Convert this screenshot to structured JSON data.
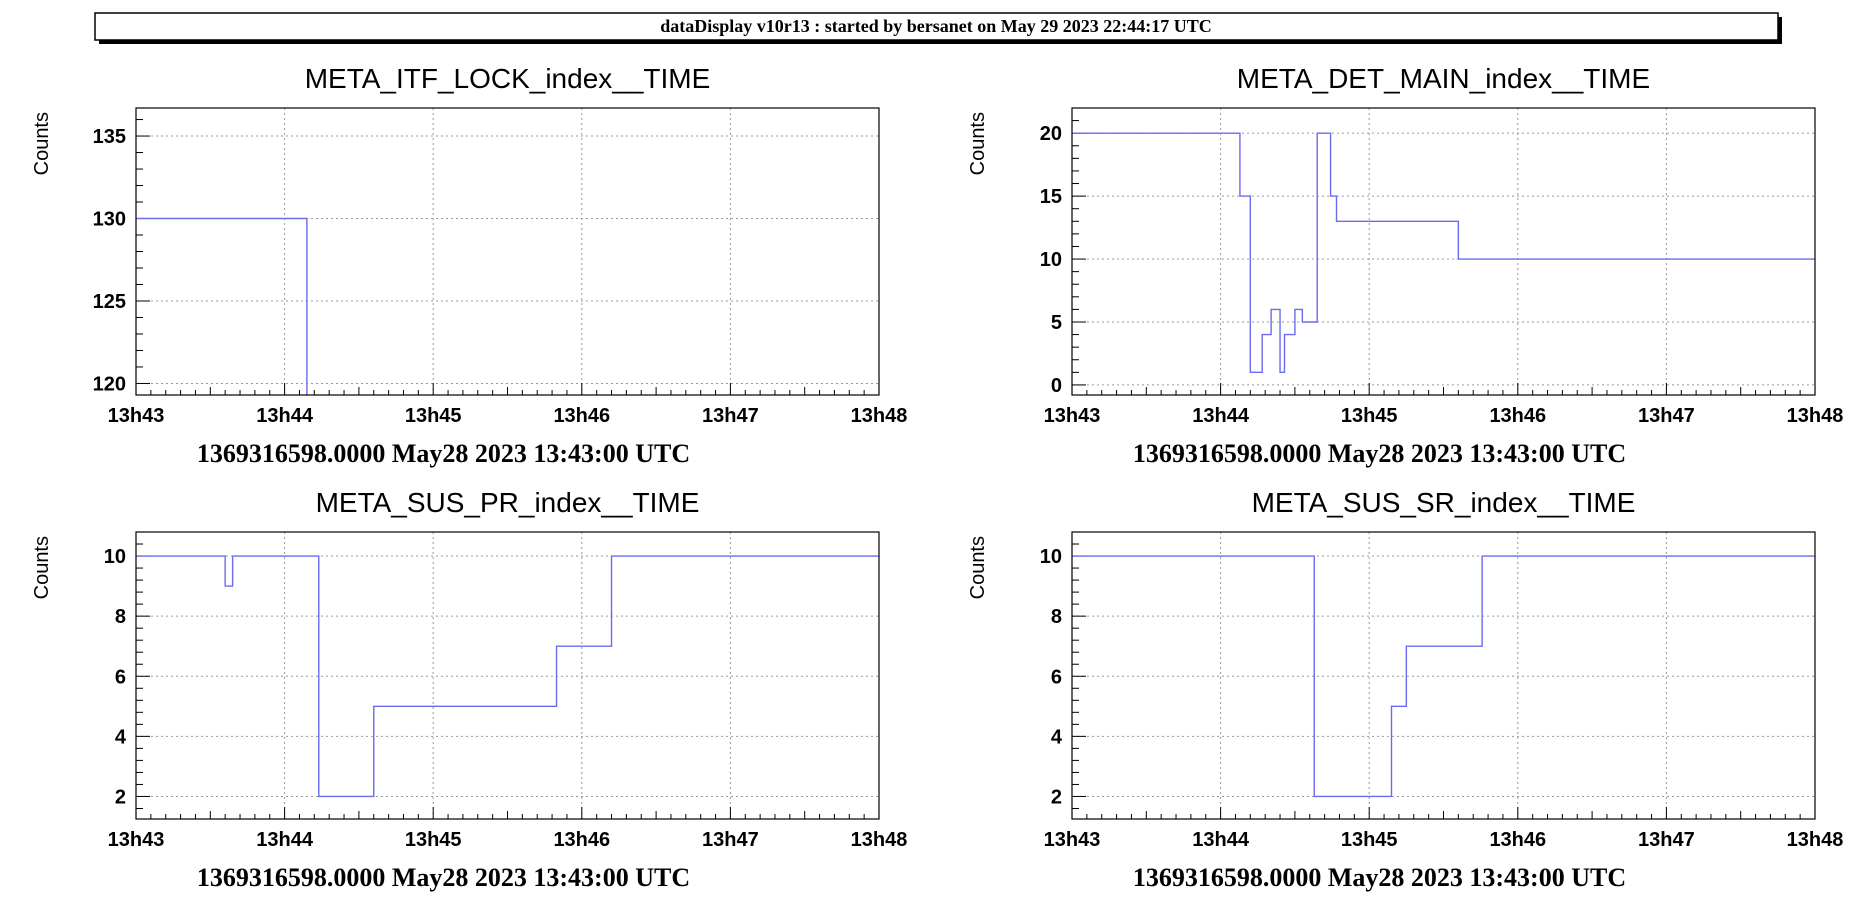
{
  "banner": {
    "text": "dataDisplay v10r13 : started by bersanet on May 29 2023 22:44:17 UTC"
  },
  "colors": {
    "line": "#6b6bf0",
    "grid": "#9a9a9a",
    "frame": "#000000"
  },
  "chart_data": [
    {
      "type": "line",
      "step": true,
      "title": "META_ITF_LOCK_index__TIME",
      "ylabel": "Counts",
      "xlabel": "1369316598.0000 May28 2023 13:43:00 UTC",
      "grid": true,
      "xlim": [
        0,
        5
      ],
      "ylim": [
        119.3,
        136.7
      ],
      "x_ticks": [
        "13h43",
        "13h44",
        "13h45",
        "13h46",
        "13h47",
        "13h48"
      ],
      "y_ticks": [
        "120",
        "125",
        "130",
        "135"
      ],
      "y_tick_values": [
        120,
        125,
        130,
        135
      ],
      "x_unit": "minutes after 13h43",
      "series": [
        {
          "x": [
            0,
            1.15,
            1.15
          ],
          "y": [
            130,
            130,
            119.3
          ]
        }
      ]
    },
    {
      "type": "line",
      "step": true,
      "title": "META_DET_MAIN_index__TIME",
      "ylabel": "Counts",
      "xlabel": "1369316598.0000 May28 2023 13:43:00 UTC",
      "grid": true,
      "xlim": [
        0,
        5
      ],
      "ylim": [
        -0.8,
        22
      ],
      "x_ticks": [
        "13h43",
        "13h44",
        "13h45",
        "13h46",
        "13h47",
        "13h48"
      ],
      "y_ticks": [
        "0",
        "5",
        "10",
        "15",
        "20"
      ],
      "y_tick_values": [
        0,
        5,
        10,
        15,
        20
      ],
      "x_unit": "minutes after 13h43",
      "series": [
        {
          "x": [
            0,
            1.13,
            1.13,
            1.2,
            1.2,
            1.28,
            1.28,
            1.34,
            1.34,
            1.4,
            1.4,
            1.43,
            1.43,
            1.5,
            1.5,
            1.55,
            1.55,
            1.65,
            1.65,
            1.74,
            1.74,
            1.78,
            1.78,
            1.87,
            1.87,
            2.6,
            2.6,
            5
          ],
          "y": [
            20,
            20,
            15,
            15,
            1,
            1,
            4,
            4,
            6,
            6,
            1,
            1,
            4,
            4,
            6,
            6,
            5,
            5,
            20,
            20,
            15,
            15,
            13,
            13,
            13,
            13,
            10,
            10
          ]
        }
      ]
    },
    {
      "type": "line",
      "step": true,
      "title": "META_SUS_PR_index__TIME",
      "ylabel": "Counts",
      "xlabel": "1369316598.0000 May28 2023 13:43:00 UTC",
      "grid": true,
      "xlim": [
        0,
        5
      ],
      "ylim": [
        1.25,
        10.8
      ],
      "x_ticks": [
        "13h43",
        "13h44",
        "13h45",
        "13h46",
        "13h47",
        "13h48"
      ],
      "y_ticks": [
        "2",
        "4",
        "6",
        "8",
        "10"
      ],
      "y_tick_values": [
        2,
        4,
        6,
        8,
        10
      ],
      "x_unit": "minutes after 13h43",
      "series": [
        {
          "x": [
            0,
            0.6,
            0.6,
            0.65,
            0.65,
            1.23,
            1.23,
            1.6,
            1.6,
            2.83,
            2.83,
            3.2,
            3.2,
            5
          ],
          "y": [
            10,
            10,
            9,
            9,
            10,
            10,
            2,
            2,
            5,
            5,
            7,
            7,
            10,
            10
          ]
        }
      ]
    },
    {
      "type": "line",
      "step": true,
      "title": "META_SUS_SR_index__TIME",
      "ylabel": "Counts",
      "xlabel": "1369316598.0000 May28 2023 13:43:00 UTC",
      "grid": true,
      "xlim": [
        0,
        5
      ],
      "ylim": [
        1.25,
        10.8
      ],
      "x_ticks": [
        "13h43",
        "13h44",
        "13h45",
        "13h46",
        "13h47",
        "13h48"
      ],
      "y_ticks": [
        "2",
        "4",
        "6",
        "8",
        "10"
      ],
      "y_tick_values": [
        2,
        4,
        6,
        8,
        10
      ],
      "x_unit": "minutes after 13h43",
      "series": [
        {
          "x": [
            0,
            1.63,
            1.63,
            2.15,
            2.15,
            2.25,
            2.25,
            2.76,
            2.76,
            5
          ],
          "y": [
            10,
            10,
            2,
            2,
            5,
            5,
            7,
            7,
            10,
            10
          ]
        }
      ]
    }
  ]
}
